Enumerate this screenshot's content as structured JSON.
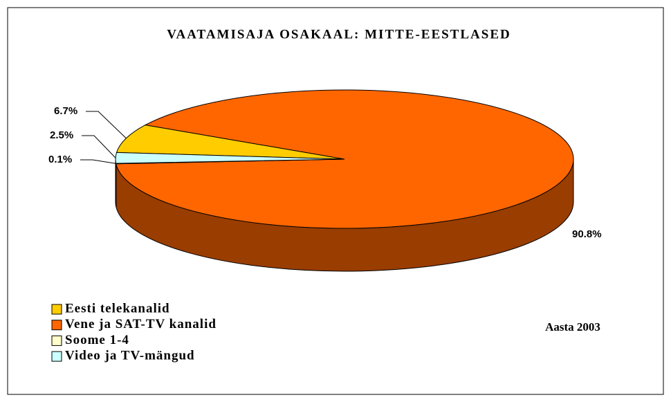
{
  "chart_data": {
    "type": "pie",
    "title": "VAATAMISAJA OSAKAAL: MITTE-EESTLASED",
    "categories": [
      "Eesti telekanalid",
      "Vene ja SAT-TV kanalid",
      "Soome 1-4",
      "Video ja TV-mängud"
    ],
    "values": [
      6.7,
      90.8,
      0.1,
      2.5
    ],
    "value_labels": [
      "6.7%",
      "90.8%",
      "0.1%",
      "2.5%"
    ],
    "colors": [
      "#ffcc00",
      "#ff6600",
      "#ffffcc",
      "#ccffff"
    ],
    "legend": "bottom-left",
    "annotation": "Aasta 2003"
  }
}
